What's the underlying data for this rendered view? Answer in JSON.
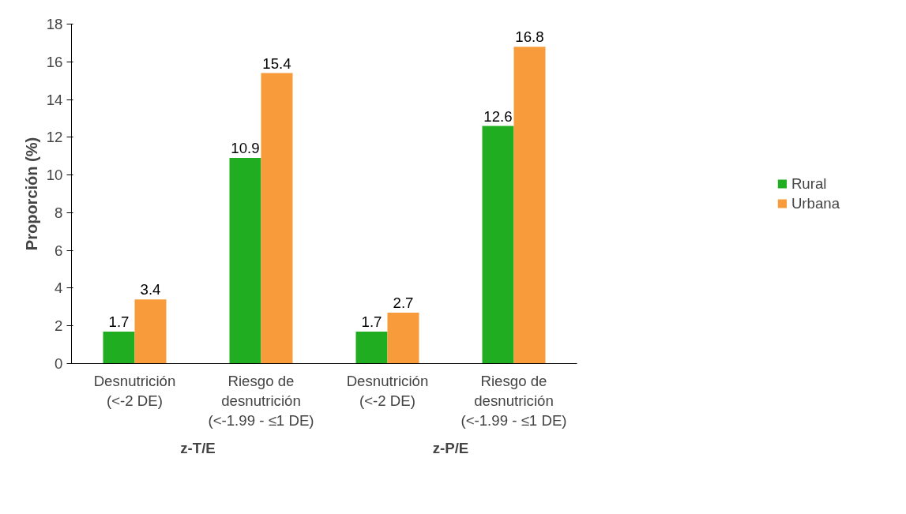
{
  "chart_data": {
    "type": "bar",
    "ylabel": "Proporción (%)",
    "categories": [
      "Desnutrición\n(<-2 DE)",
      "Riesgo de\ndesnutrición\n(<-1.99 - ≤1 DE)",
      "Desnutrición\n(<-2 DE)",
      "Riesgo de\ndesnutrición\n(<-1.99 - ≤1 DE)"
    ],
    "series": [
      {
        "name": "Rural",
        "color": "#21ad21",
        "values": [
          1.7,
          10.9,
          1.7,
          12.6
        ]
      },
      {
        "name": "Urbana",
        "color": "#f79b3b",
        "values": [
          3.4,
          15.4,
          2.7,
          16.8
        ]
      }
    ],
    "ylim": [
      0,
      18
    ],
    "yticks": [
      0,
      2,
      4,
      6,
      8,
      10,
      12,
      14,
      16,
      18
    ],
    "annotations": [
      "z-T/E",
      "z-P/E"
    ],
    "data_labels": true,
    "grid": false,
    "legend": "right"
  }
}
